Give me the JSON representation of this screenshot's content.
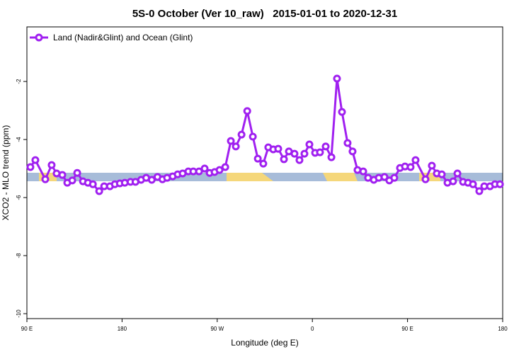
{
  "chart_data": {
    "type": "line",
    "title": "5S-0 October (Ver 10_raw)   2015-01-01 to 2020-12-31",
    "xlabel": "Longitude (deg E)",
    "ylabel": "XCO2 - MLO trend (ppm)",
    "xlim": [
      90,
      540
    ],
    "xticks": [
      {
        "value": 90,
        "label": "90 E"
      },
      {
        "value": 180,
        "label": "180"
      },
      {
        "value": 270,
        "label": "90 W"
      },
      {
        "value": 360,
        "label": "0"
      },
      {
        "value": 450,
        "label": "90 E"
      },
      {
        "value": 540,
        "label": "180"
      }
    ],
    "ylim": [
      -10.17,
      -0.12
    ],
    "yticks": [
      -2,
      -4,
      -6,
      -8,
      -10
    ],
    "legend": "upper left",
    "series": [
      {
        "name": "Land (Nadir&Glint) and Ocean (Glint)",
        "color": "#a020f0",
        "x": [
          93.3,
          98.0,
          107.4,
          113.4,
          118.1,
          123.5,
          128.2,
          132.9,
          137.6,
          143.0,
          147.7,
          152.4,
          158.4,
          163.1,
          168.5,
          173.2,
          177.9,
          182.6,
          188.0,
          192.7,
          198.0,
          202.8,
          208.1,
          213.5,
          218.2,
          222.6,
          227.9,
          232.6,
          237.3,
          242.7,
          247.4,
          252.8,
          258.1,
          262.8,
          267.5,
          272.2,
          277.6,
          282.9,
          287.6,
          293.0,
          298.4,
          303.7,
          308.4,
          313.6,
          318.3,
          323.0,
          327.7,
          333.1,
          337.8,
          343.1,
          347.8,
          352.5,
          357.2,
          362.6,
          367.2,
          372.6,
          378.0,
          383.3,
          388.0,
          393.3,
          398.0,
          402.7,
          408.1,
          412.7,
          418.1,
          422.8,
          428.2,
          432.8,
          437.5,
          442.9,
          447.6,
          452.9,
          457.6,
          467.0,
          473.0,
          477.7,
          482.4,
          487.8,
          493.1,
          497.2,
          502.5,
          507.2,
          511.9,
          517.9,
          522.6,
          528.0,
          532.7,
          537.4
        ],
        "values": [
          -4.95,
          -4.71,
          -5.37,
          -4.88,
          -5.17,
          -5.22,
          -5.49,
          -5.41,
          -5.15,
          -5.44,
          -5.49,
          -5.54,
          -5.78,
          -5.61,
          -5.61,
          -5.54,
          -5.51,
          -5.49,
          -5.46,
          -5.46,
          -5.39,
          -5.32,
          -5.39,
          -5.29,
          -5.37,
          -5.32,
          -5.27,
          -5.2,
          -5.17,
          -5.1,
          -5.1,
          -5.1,
          -5.0,
          -5.15,
          -5.12,
          -5.05,
          -4.95,
          -4.05,
          -4.24,
          -3.83,
          -3.02,
          -3.9,
          -4.66,
          -4.83,
          -4.27,
          -4.34,
          -4.32,
          -4.68,
          -4.41,
          -4.49,
          -4.71,
          -4.49,
          -4.17,
          -4.46,
          -4.44,
          -4.24,
          -4.61,
          -1.9,
          -3.05,
          -4.12,
          -4.41,
          -5.05,
          -5.1,
          -5.32,
          -5.39,
          -5.32,
          -5.29,
          -5.41,
          -5.32,
          -4.98,
          -4.93,
          -4.95,
          -4.71,
          -5.37,
          -4.9,
          -5.17,
          -5.2,
          -5.49,
          -5.44,
          -5.17,
          -5.46,
          -5.49,
          -5.54,
          -5.78,
          -5.61,
          -5.61,
          -5.54,
          -5.54
        ]
      }
    ]
  }
}
